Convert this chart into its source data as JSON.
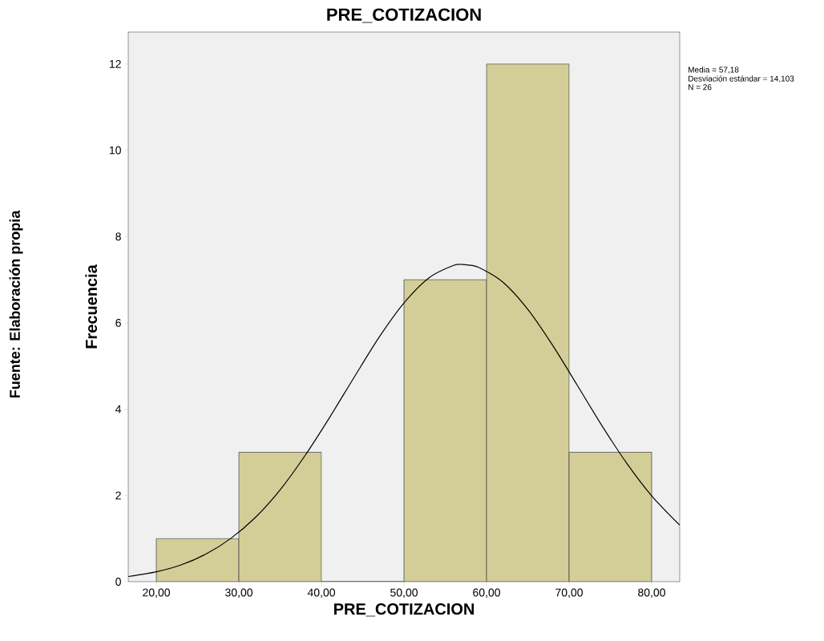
{
  "chart_data": {
    "type": "histogram",
    "title": "PRE_COTIZACION",
    "xlabel": "PRE_COTIZACION",
    "ylabel": "Frecuencia",
    "annotations": [
      "Media = 57,18",
      "Desviación estándar = 14,103",
      "N = 26",
      "Fuente: Elaboración propia"
    ],
    "bins": [
      20,
      30,
      40,
      50,
      60,
      70,
      80
    ],
    "values": [
      1,
      3,
      0,
      7,
      12,
      3
    ],
    "color": "#d3ce97",
    "series": [
      {
        "type": "line",
        "color": "#000000",
        "x": [
          16.6,
          20,
          23,
          26,
          29,
          32,
          35,
          38,
          41,
          44,
          47,
          50,
          53,
          56,
          57.18,
          59,
          62,
          65,
          68,
          71,
          74,
          77,
          80,
          83.4
        ],
        "values": [
          0.12,
          0.23,
          0.39,
          0.64,
          1.0,
          1.49,
          2.13,
          2.92,
          3.81,
          4.75,
          5.67,
          6.46,
          7.04,
          7.33,
          7.35,
          7.29,
          6.94,
          6.31,
          5.48,
          4.55,
          3.61,
          2.74,
          1.99,
          1.31
        ]
      }
    ],
    "xlim": [
      16.6,
      83.4
    ],
    "ylim": [
      0,
      12.74
    ],
    "xticks": [
      {
        "value": 20,
        "label": "20,00"
      },
      {
        "value": 30,
        "label": "30,00"
      },
      {
        "value": 40,
        "label": "40,00"
      },
      {
        "value": 50,
        "label": "50,00"
      },
      {
        "value": 60,
        "label": "60,00"
      },
      {
        "value": 70,
        "label": "70,00"
      },
      {
        "value": 80,
        "label": "80,00"
      }
    ],
    "yticks": [
      0,
      2,
      4,
      6,
      8,
      10,
      12
    ]
  }
}
